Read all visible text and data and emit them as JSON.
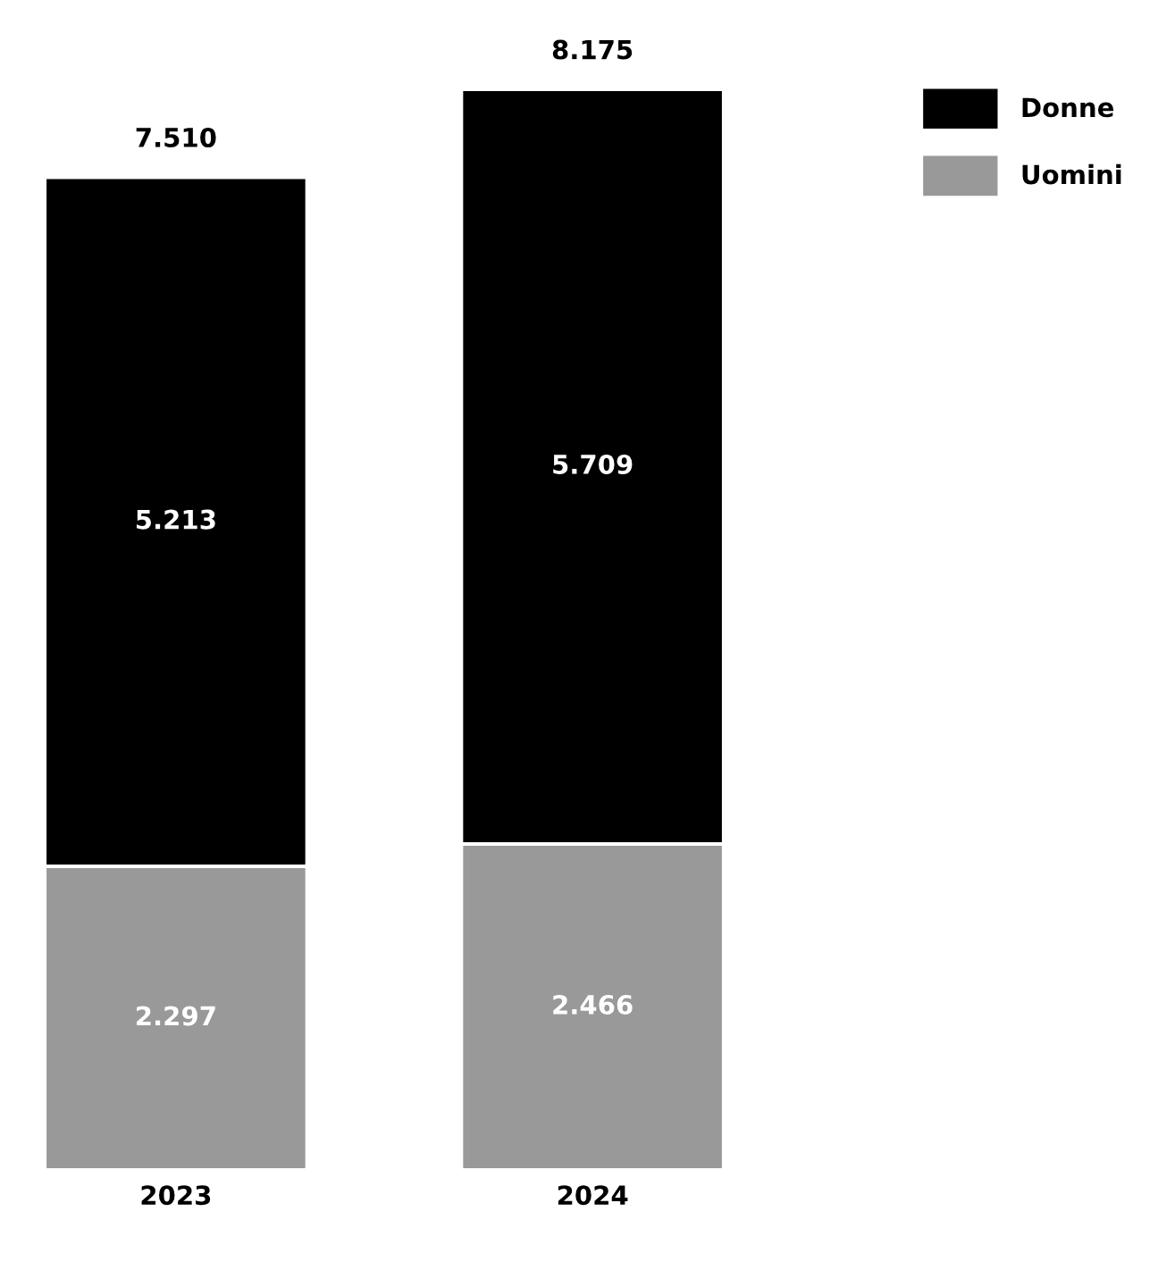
{
  "chart_data": {
    "type": "bar",
    "stacked": true,
    "categories": [
      "2023",
      "2024"
    ],
    "series": [
      {
        "name": "Uomini",
        "color": "#999999",
        "values": [
          2297,
          2466
        ],
        "value_labels": [
          "2.297",
          "2.466"
        ]
      },
      {
        "name": "Donne",
        "color": "#000000",
        "values": [
          5213,
          5709
        ],
        "value_labels": [
          "5.213",
          "5.709"
        ]
      }
    ],
    "totals": [
      "7.510",
      "8.175"
    ],
    "legend": "top right",
    "grid": false
  }
}
